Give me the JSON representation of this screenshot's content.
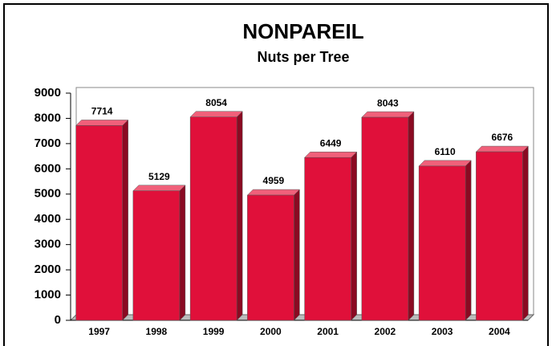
{
  "chart_data": {
    "type": "bar",
    "title": "NONPAREIL",
    "subtitle": "Nuts per Tree",
    "categories": [
      "1997",
      "1998",
      "1999",
      "2000",
      "2001",
      "2002",
      "2003",
      "2004"
    ],
    "values": [
      7714,
      5129,
      8054,
      4959,
      6449,
      8043,
      6110,
      6676
    ],
    "color": "#e0103a",
    "ylim": [
      0,
      9000
    ],
    "yticks": [
      0,
      1000,
      2000,
      3000,
      4000,
      5000,
      6000,
      7000,
      8000,
      9000
    ],
    "grid": false
  }
}
